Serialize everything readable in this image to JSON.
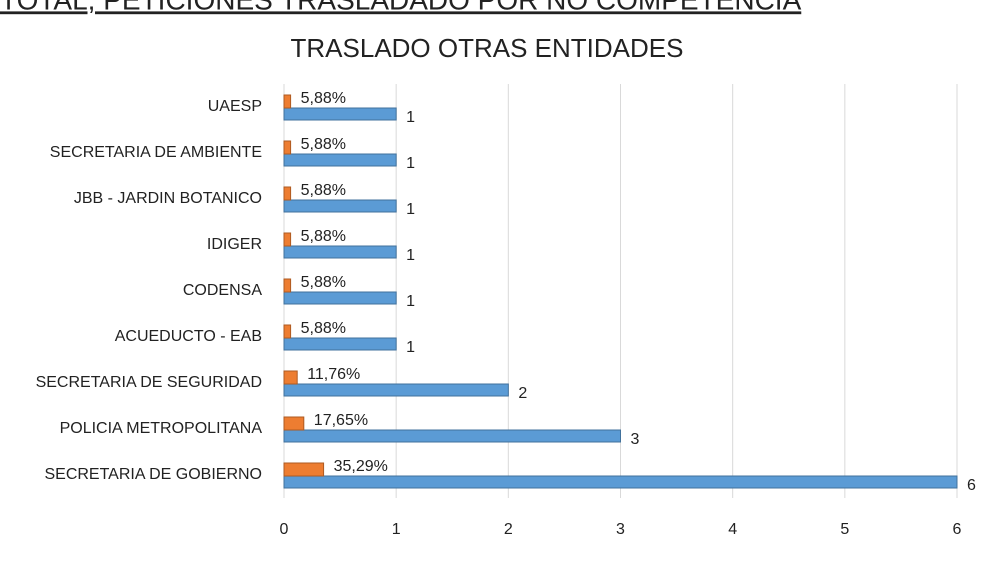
{
  "chart_data": {
    "type": "bar",
    "orientation": "horizontal",
    "heading": "TOTAL, PETICIONES TRASLADADO POR NO COMPETENCIA",
    "title": "TRASLADO OTRAS ENTIDADES",
    "categories": [
      "UAESP",
      "SECRETARIA DE AMBIENTE",
      "JBB - JARDIN BOTANICO",
      "IDIGER",
      "CODENSA",
      "ACUEDUCTO - EAB",
      "SECRETARIA DE SEGURIDAD",
      "POLICIA METROPOLITANA",
      "SECRETARIA DE GOBIERNO"
    ],
    "series": [
      {
        "color": "#5b9bd5",
        "values": [
          1,
          1,
          1,
          1,
          1,
          1,
          2,
          3,
          6
        ]
      },
      {
        "color": "#ed7d31",
        "values": [
          0.0588,
          0.0588,
          0.0588,
          0.0588,
          0.0588,
          0.0588,
          0.1176,
          0.1765,
          0.3529
        ],
        "value_labels": [
          "5,88%",
          "5,88%",
          "5,88%",
          "5,88%",
          "5,88%",
          "5,88%",
          "11,76%",
          "17,65%",
          "35,29%"
        ]
      }
    ],
    "xlim": [
      0,
      6
    ],
    "xticks": [
      0,
      1,
      2,
      3,
      4,
      5,
      6
    ],
    "grid": true
  }
}
